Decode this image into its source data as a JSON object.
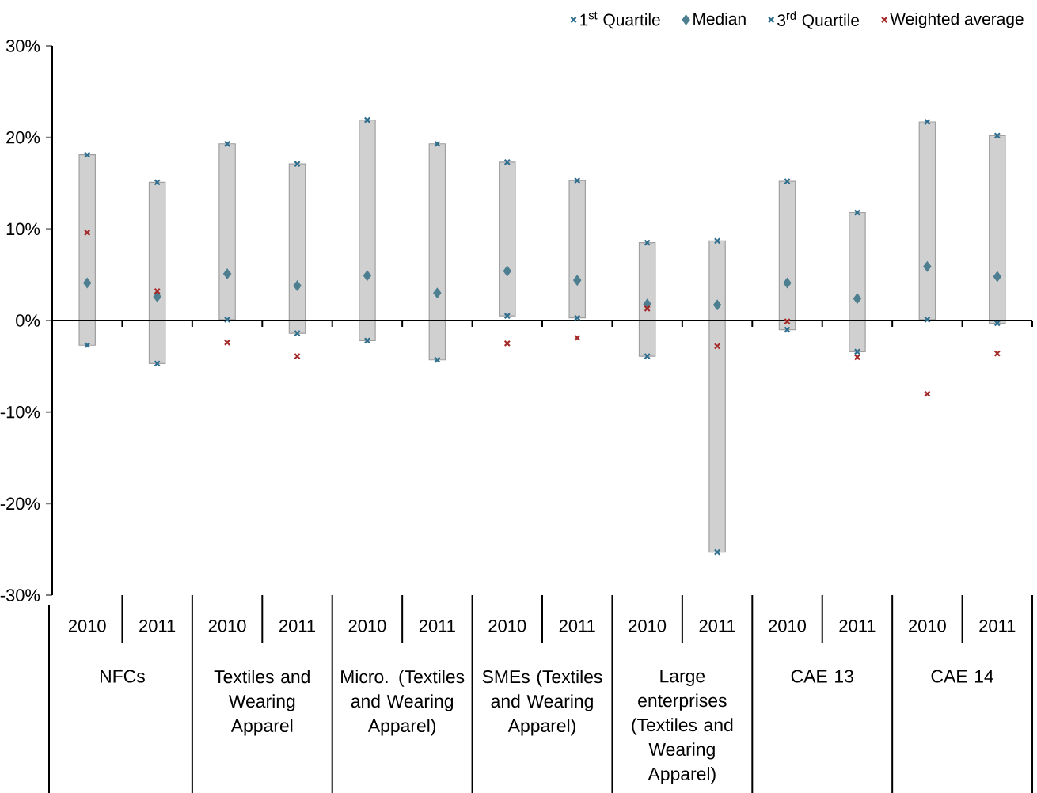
{
  "chart_data": {
    "type": "bar",
    "categories": [
      "2010",
      "2011",
      "2010",
      "2011",
      "2010",
      "2011",
      "2010",
      "2011",
      "2010",
      "2011",
      "2010",
      "2011",
      "2010",
      "2011"
    ],
    "series": [
      {
        "color": "#d0d0d0",
        "base": [
          -2.7,
          -4.7,
          0.1,
          -1.4,
          -2.2,
          -4.3,
          0.5,
          0.3,
          -3.9,
          -25.3,
          -1.0,
          -3.4,
          0.1,
          -0.3
        ],
        "values": [
          20.8,
          19.8,
          19.2,
          18.5,
          24.1,
          23.6,
          16.8,
          15.0,
          12.4,
          34.0,
          16.2,
          15.2,
          21.6,
          20.5
        ]
      },
      {
        "type": "scatter",
        "name": "1$^{st}$ Quartile",
        "marker": "cross",
        "color": "#2e6e8e",
        "values": [
          -2.7,
          -4.7,
          0.1,
          -1.4,
          -2.2,
          -4.3,
          0.5,
          0.3,
          -3.9,
          -25.3,
          -1.0,
          -3.4,
          0.1,
          -0.3
        ]
      },
      {
        "type": "scatter",
        "name": "Median",
        "marker": "diamond",
        "color": "#4d7f91",
        "values": [
          4.1,
          2.6,
          5.1,
          3.8,
          4.9,
          3.0,
          5.4,
          4.4,
          1.8,
          1.7,
          4.1,
          2.4,
          5.9,
          4.8
        ]
      },
      {
        "type": "scatter",
        "name": "3$^{rd}$ Quartile",
        "marker": "cross",
        "color": "#2e6e8e",
        "values": [
          18.1,
          15.1,
          19.3,
          17.1,
          21.9,
          19.3,
          17.3,
          15.3,
          8.5,
          8.7,
          15.2,
          11.8,
          21.7,
          20.2
        ]
      },
      {
        "type": "scatter",
        "name": "Weighted average",
        "marker": "cross",
        "color": "#a52a2a",
        "values": [
          9.6,
          3.2,
          -2.4,
          -3.9,
          null,
          null,
          -2.5,
          -1.9,
          1.3,
          -2.8,
          -0.1,
          -4.0,
          -8.0,
          -3.6
        ]
      }
    ],
    "ylim": [
      -30,
      30
    ],
    "yticks": [
      {
        "value": -30,
        "label": "-30%"
      },
      {
        "value": -20,
        "label": "-20%"
      },
      {
        "value": -10,
        "label": "-10%"
      },
      {
        "value": 0,
        "label": "0%"
      },
      {
        "value": 10,
        "label": "10%"
      },
      {
        "value": 20,
        "label": "20%"
      },
      {
        "value": 30,
        "label": "30%"
      }
    ],
    "legend": "top right",
    "annotations": [
      "NFCs",
      "Textiles and Wearing Apparel",
      "Micro. (Textiles and Wearing Apparel)",
      "SMEs (Textiles and Wearing Apparel)",
      "Large enterprises (Textiles and Wearing Apparel)",
      "CAE 13",
      "CAE 14"
    ]
  }
}
